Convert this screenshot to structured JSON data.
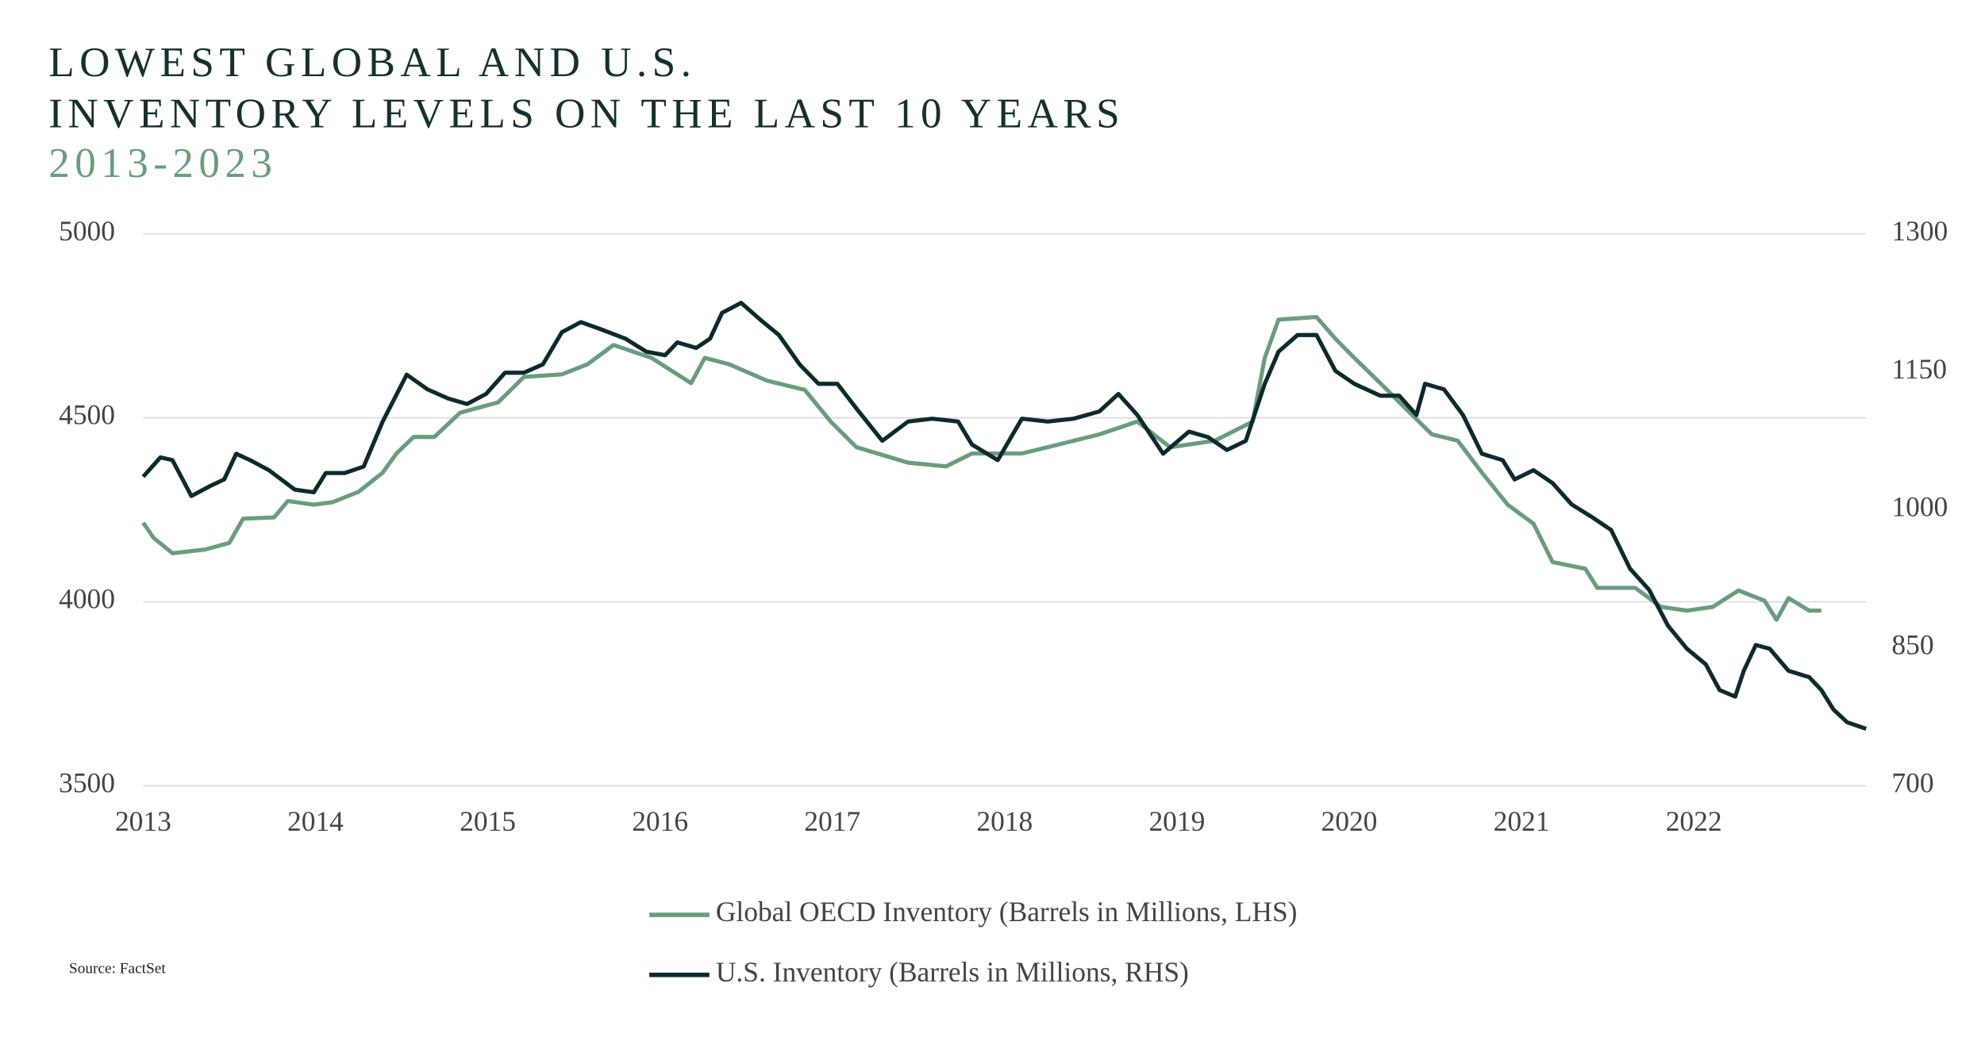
{
  "chart_data": {
    "type": "line",
    "title_lines": [
      "LOWEST GLOBAL AND U.S.",
      "INVENTORY LEVELS ON THE LAST 10 YEARS"
    ],
    "subtitle": "2013-2023",
    "source": "Source: FactSet",
    "xlim": [
      2013,
      2023
    ],
    "xticks": [
      2013,
      2014,
      2015,
      2016,
      2017,
      2018,
      2019,
      2020,
      2021,
      2022
    ],
    "ylim": [
      3500,
      5000
    ],
    "yticks": [
      3500,
      4000,
      4500,
      5000
    ],
    "y2lim": [
      700,
      1300
    ],
    "y2ticks": [
      700,
      850,
      1000,
      1150,
      1300
    ],
    "grid": true,
    "legend": "bottom",
    "series": [
      {
        "name": "Global OECD Inventory (Barrels in Millions, LHS)",
        "color": "#6a9c7e",
        "axis": "y",
        "x": [
          2013.0,
          2013.06,
          2013.17,
          2013.36,
          2013.5,
          2013.58,
          2013.76,
          2013.84,
          2013.99,
          2014.1,
          2014.25,
          2014.39,
          2014.47,
          2014.57,
          2014.69,
          2014.84,
          2015.06,
          2015.21,
          2015.43,
          2015.58,
          2015.73,
          2015.95,
          2016.18,
          2016.26,
          2016.4,
          2016.62,
          2016.84,
          2016.99,
          2017.14,
          2017.44,
          2017.66,
          2017.81,
          2018.1,
          2018.25,
          2018.55,
          2018.77,
          2018.96,
          2019.22,
          2019.44,
          2019.51,
          2019.59,
          2019.81,
          2019.92,
          2020.03,
          2020.18,
          2020.33,
          2020.48,
          2020.63,
          2020.77,
          2020.92,
          2021.07,
          2021.18,
          2021.37,
          2021.44,
          2021.66,
          2021.81,
          2021.96,
          2022.11,
          2022.26,
          2022.41,
          2022.48,
          2022.55,
          2022.67,
          2022.74
        ],
        "values": [
          4215,
          4174,
          4132,
          4142,
          4160,
          4226,
          4229,
          4274,
          4264,
          4271,
          4299,
          4351,
          4403,
          4448,
          4448,
          4514,
          4542,
          4611,
          4618,
          4646,
          4698,
          4663,
          4594,
          4663,
          4646,
          4601,
          4576,
          4490,
          4420,
          4378,
          4368,
          4403,
          4403,
          4420,
          4455,
          4490,
          4420,
          4438,
          4490,
          4663,
          4767,
          4774,
          4715,
          4663,
          4594,
          4524,
          4455,
          4438,
          4351,
          4264,
          4212,
          4108,
          4090,
          4038,
          4038,
          3986,
          3976,
          3986,
          4031,
          4003,
          3951,
          4010,
          3976,
          3976
        ]
      },
      {
        "name": "U.S. Inventory (Barrels in Millions, RHS)",
        "color": "#0d2a2e",
        "axis": "y2",
        "x": [
          2013.0,
          2013.1,
          2013.17,
          2013.28,
          2013.39,
          2013.47,
          2013.54,
          2013.62,
          2013.73,
          2013.88,
          2013.99,
          2014.06,
          2014.17,
          2014.28,
          2014.39,
          2014.53,
          2014.65,
          2014.77,
          2014.88,
          2014.99,
          2015.1,
          2015.21,
          2015.32,
          2015.43,
          2015.54,
          2015.66,
          2015.8,
          2015.92,
          2016.03,
          2016.1,
          2016.21,
          2016.29,
          2016.36,
          2016.47,
          2016.58,
          2016.69,
          2016.81,
          2016.92,
          2017.03,
          2017.14,
          2017.29,
          2017.44,
          2017.58,
          2017.73,
          2017.81,
          2017.96,
          2018.1,
          2018.25,
          2018.4,
          2018.55,
          2018.66,
          2018.77,
          2018.92,
          2019.07,
          2019.18,
          2019.29,
          2019.4,
          2019.51,
          2019.59,
          2019.7,
          2019.81,
          2019.92,
          2020.03,
          2020.18,
          2020.29,
          2020.39,
          2020.44,
          2020.55,
          2020.66,
          2020.77,
          2020.89,
          2020.96,
          2021.07,
          2021.18,
          2021.29,
          2021.41,
          2021.52,
          2021.63,
          2021.74,
          2021.85,
          2021.96,
          2022.07,
          2022.15,
          2022.24,
          2022.29,
          2022.36,
          2022.44,
          2022.55,
          2022.67,
          2022.74,
          2022.81,
          2022.89,
          2023.0
        ],
        "values": [
          1036,
          1057,
          1054,
          1015,
          1026,
          1033,
          1061,
          1054,
          1043,
          1022,
          1019,
          1040,
          1040,
          1047,
          1096,
          1147,
          1131,
          1121,
          1115,
          1126,
          1149,
          1149,
          1158,
          1193,
          1204,
          1196,
          1186,
          1172,
          1168,
          1182,
          1176,
          1186,
          1214,
          1225,
          1207,
          1190,
          1158,
          1137,
          1137,
          1110,
          1075,
          1096,
          1099,
          1096,
          1071,
          1054,
          1099,
          1096,
          1099,
          1107,
          1126,
          1103,
          1061,
          1085,
          1079,
          1065,
          1075,
          1137,
          1172,
          1190,
          1190,
          1151,
          1137,
          1124,
          1124,
          1103,
          1137,
          1131,
          1103,
          1061,
          1054,
          1033,
          1043,
          1029,
          1006,
          992,
          978,
          936,
          913,
          874,
          849,
          832,
          804,
          797,
          825,
          853,
          849,
          825,
          818,
          804,
          783,
          769,
          762
        ]
      }
    ]
  }
}
